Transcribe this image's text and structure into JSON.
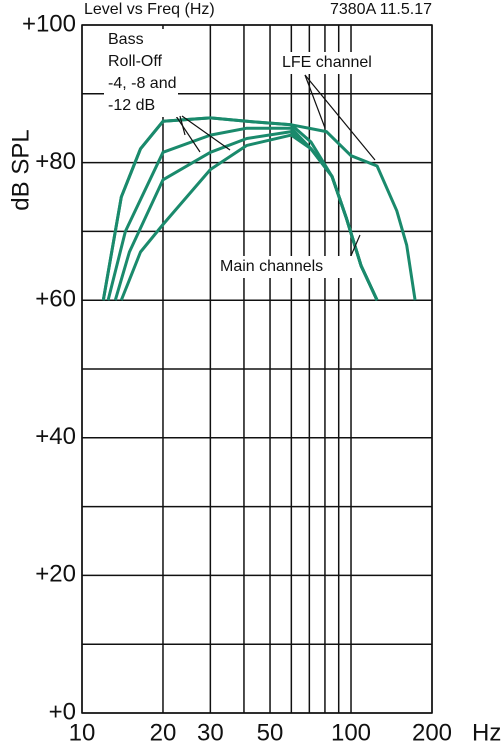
{
  "chart_data": {
    "type": "line",
    "title": "Level vs Freq (Hz)",
    "subtitle": "7380A 11.5.17",
    "y_label": "dB SPL",
    "x_label": "Hz",
    "log_x": true,
    "grid": true,
    "xlim": [
      10,
      200
    ],
    "xticks": [
      10,
      20,
      30,
      50,
      100,
      200
    ],
    "xminor": [
      40,
      60,
      70,
      80,
      90
    ],
    "ylim": [
      0,
      100
    ],
    "yticks": [
      {
        "value": 0,
        "label": "+0"
      },
      {
        "value": 20,
        "label": "+20"
      },
      {
        "value": 40,
        "label": "+40"
      },
      {
        "value": 60,
        "label": "+60"
      },
      {
        "value": 80,
        "label": "+80"
      },
      {
        "value": 100,
        "label": "+100"
      }
    ],
    "yminor": [
      10,
      30,
      50,
      70,
      90
    ],
    "annotations": {
      "bass": [
        "Bass",
        "Roll-Off",
        "-4, -8 and",
        "-12 dB"
      ],
      "lfe": "LFE channel",
      "main": "Main channels"
    },
    "series": [
      {
        "color": "#1a8a6c",
        "x": [
          12,
          14,
          16.5,
          20,
          30,
          41,
          60,
          81,
          100,
          125,
          148,
          161,
          173
        ],
        "values": [
          60,
          75,
          82,
          86,
          86.5,
          86,
          85.5,
          84.5,
          81,
          79.5,
          73,
          68,
          60
        ]
      },
      {
        "color": "#1a8a6c",
        "x": [
          12,
          14,
          16.5,
          20,
          30,
          41,
          60,
          71,
          85,
          96,
          109,
          125
        ],
        "values": [
          60,
          75,
          82,
          86,
          86.5,
          86,
          85.5,
          83,
          78,
          72,
          65,
          60
        ]
      },
      {
        "color": "#1a8a6c",
        "x": [
          12.5,
          14.5,
          20,
          30,
          41,
          60,
          71,
          85,
          96,
          109,
          125
        ],
        "values": [
          60,
          70,
          81.5,
          84,
          85,
          85,
          82,
          78,
          72,
          65,
          60
        ]
      },
      {
        "color": "#1a8a6c",
        "x": [
          13.3,
          15,
          20,
          30,
          41,
          60,
          71,
          85,
          96,
          109,
          125
        ],
        "values": [
          60,
          67,
          77.5,
          81.5,
          83.5,
          84.5,
          82,
          78,
          72,
          65,
          60
        ]
      },
      {
        "color": "#1a8a6c",
        "x": [
          14,
          16.5,
          20,
          30,
          41,
          60,
          71,
          85,
          96,
          109,
          125
        ],
        "values": [
          60,
          67,
          71,
          79,
          82.5,
          84,
          82,
          78,
          72,
          65,
          60
        ]
      }
    ]
  }
}
